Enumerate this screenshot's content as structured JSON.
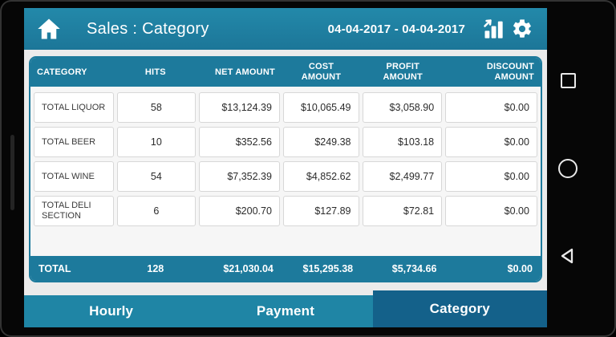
{
  "header": {
    "title": "Sales : Category",
    "date_range": "04-04-2017 - 04-04-2017"
  },
  "icons": {
    "home": "house-icon",
    "report": "bar-chart-trend-icon",
    "settings": "gear-icon",
    "nav_recents": "square-outline-icon",
    "nav_home": "circle-outline-icon",
    "nav_back": "triangle-outline-icon"
  },
  "colors": {
    "teal": "#1d7a9c",
    "appbar": "#1f7fa1",
    "tab": "#1f85a5",
    "tab_selected": "#14618a",
    "content_bg": "#ebebeb",
    "cell_border": "#d7d7d7"
  },
  "table": {
    "columns": [
      {
        "key": "category",
        "label": "CATEGORY",
        "width": 16.4,
        "halign": "left",
        "calign": "left"
      },
      {
        "key": "hits",
        "label": "HITS",
        "width": 16.2,
        "halign": "center",
        "calign": "center"
      },
      {
        "key": "net",
        "label": "NET AMOUNT",
        "width": 16.6,
        "halign": "right",
        "calign": "right"
      },
      {
        "key": "cost",
        "label": "COST AMOUNT",
        "width": 15.6,
        "halign": "center",
        "calign": "right"
      },
      {
        "key": "profit",
        "label": "PROFIT AMOUNT",
        "width": 16.4,
        "halign": "center",
        "calign": "right"
      },
      {
        "key": "discount",
        "label": "DISCOUNT AMOUNT",
        "width": 18.8,
        "halign": "right",
        "calign": "right"
      }
    ],
    "rows": [
      {
        "category": "TOTAL LIQUOR",
        "hits": "58",
        "net": "$13,124.39",
        "cost": "$10,065.49",
        "profit": "$3,058.90",
        "discount": "$0.00"
      },
      {
        "category": "TOTAL BEER",
        "hits": "10",
        "net": "$352.56",
        "cost": "$249.38",
        "profit": "$103.18",
        "discount": "$0.00"
      },
      {
        "category": "TOTAL WINE",
        "hits": "54",
        "net": "$7,352.39",
        "cost": "$4,852.62",
        "profit": "$2,499.77",
        "discount": "$0.00"
      },
      {
        "category": "TOTAL DELI SECTION",
        "hits": "6",
        "net": "$200.70",
        "cost": "$127.89",
        "profit": "$72.81",
        "discount": "$0.00"
      }
    ],
    "total": {
      "category": "TOTAL",
      "hits": "128",
      "net": "$21,030.04",
      "cost": "$15,295.38",
      "profit": "$5,734.66",
      "discount": "$0.00"
    }
  },
  "tabs": [
    {
      "label": "Hourly",
      "selected": false
    },
    {
      "label": "Payment",
      "selected": false
    },
    {
      "label": "Category",
      "selected": true
    }
  ]
}
